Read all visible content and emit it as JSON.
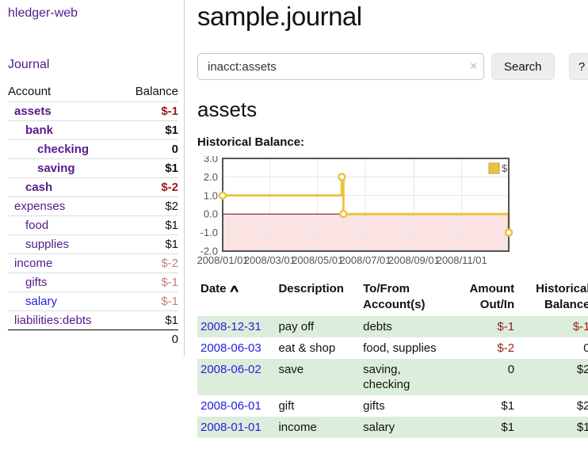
{
  "colors": {
    "accent_gold": "#edc240",
    "gold_border": "#c9a42e",
    "negative_strong": "#9b1b1b",
    "negative_muted": "#c1807d",
    "link_purple": "#551a8b",
    "link_blue": "#2222dd",
    "row_green": "#dceedb",
    "negative_region_fill": "#fbe3e3",
    "zero_line": "#8b0000",
    "chart_border": "#545454",
    "gridline": "#e6e6e6"
  },
  "sidebar": {
    "brand": "hledger-web",
    "journal_link": "Journal",
    "accounts_table": {
      "headers": {
        "account": "Account",
        "balance": "Balance"
      },
      "rows": [
        {
          "account": "assets",
          "balance": "$-1",
          "depth": 1,
          "emph": true,
          "balance_class": "neg-strong"
        },
        {
          "account": "bank",
          "balance": "$1",
          "depth": 2,
          "emph": true,
          "balance_class": ""
        },
        {
          "account": "checking",
          "balance": "0",
          "depth": 3,
          "emph": true,
          "balance_class": ""
        },
        {
          "account": "saving",
          "balance": "$1",
          "depth": 3,
          "emph": true,
          "balance_class": ""
        },
        {
          "account": "cash",
          "balance": "$-2",
          "depth": 2,
          "emph": true,
          "balance_class": "neg-strong"
        },
        {
          "account": "expenses",
          "balance": "$2",
          "depth": 1,
          "emph": false,
          "balance_class": ""
        },
        {
          "account": "food",
          "balance": "$1",
          "depth": 2,
          "emph": false,
          "balance_class": ""
        },
        {
          "account": "supplies",
          "balance": "$1",
          "depth": 2,
          "emph": false,
          "balance_class": ""
        },
        {
          "account": "income",
          "balance": "$-2",
          "depth": 1,
          "emph": false,
          "balance_class": "neg-muted"
        },
        {
          "account": "gifts",
          "balance": "$-1",
          "depth": 2,
          "emph": false,
          "balance_class": "neg-muted"
        },
        {
          "account": "salary",
          "balance": "$-1",
          "depth": 2,
          "emph": false,
          "balance_class": "neg-muted",
          "link_color": "blue"
        },
        {
          "account": "liabilities:debts",
          "balance": "$1",
          "depth": 1,
          "emph": false,
          "balance_class": ""
        }
      ],
      "total": "0"
    }
  },
  "main": {
    "title": "sample.journal",
    "search": {
      "value": "inacct:assets",
      "clear_icon": "×",
      "search_button": "Search",
      "help_button": "?"
    },
    "account_heading": "assets",
    "chart_label": "Historical Balance:"
  },
  "chart_data": {
    "type": "line",
    "step": true,
    "title": "Historical Balance:",
    "series": [
      {
        "name": "$",
        "color": "#edc240",
        "points": [
          {
            "date": "2008-01-01",
            "value": 1
          },
          {
            "date": "2008-06-01",
            "value": 2
          },
          {
            "date": "2008-06-03",
            "value": 0
          },
          {
            "date": "2008-12-31",
            "value": -1
          }
        ]
      }
    ],
    "x_range": [
      "2008-01-01",
      "2008-12-31"
    ],
    "x_ticks": [
      {
        "label": "2008/01/01",
        "date": "2008-01-01"
      },
      {
        "label": "2008/03/01",
        "date": "2008-03-01"
      },
      {
        "label": "2008/05/01",
        "date": "2008-05-01"
      },
      {
        "label": "2008/07/01",
        "date": "2008-07-01"
      },
      {
        "label": "2008/09/01",
        "date": "2008-09-01"
      },
      {
        "label": "2008/11/01",
        "date": "2008-11-01"
      }
    ],
    "ylim": [
      -2,
      3
    ],
    "y_ticks": [
      "3.0",
      "2.0",
      "1.0",
      "0.0",
      "-1.0",
      "-2.0"
    ],
    "grid": true,
    "legend": {
      "label": "$",
      "position": "top-right"
    },
    "negative_region": {
      "below": 0
    }
  },
  "register": {
    "columns": [
      {
        "label": "Date",
        "sort": "asc",
        "align": "left"
      },
      {
        "label": "Description",
        "align": "left"
      },
      {
        "label": "To/From Account(s)",
        "align": "left"
      },
      {
        "label": "Amount Out/In",
        "align": "right"
      },
      {
        "label": "Historical Balance",
        "align": "right"
      }
    ],
    "sort_caret": "∧",
    "rows": [
      {
        "date": "2008-12-31",
        "description": "pay off",
        "accounts": "debts",
        "amount": "$-1",
        "amount_neg": true,
        "balance": "$-1",
        "balance_neg": true,
        "shaded": true
      },
      {
        "date": "2008-06-03",
        "description": "eat & shop",
        "accounts": "food, supplies",
        "amount": "$-2",
        "amount_neg": true,
        "balance": "0",
        "balance_neg": false,
        "shaded": false
      },
      {
        "date": "2008-06-02",
        "description": "save",
        "accounts": "saving, checking",
        "amount": "0",
        "amount_neg": false,
        "balance": "$2",
        "balance_neg": false,
        "shaded": true
      },
      {
        "date": "2008-06-01",
        "description": "gift",
        "accounts": "gifts",
        "amount": "$1",
        "amount_neg": false,
        "balance": "$2",
        "balance_neg": false,
        "shaded": false
      },
      {
        "date": "2008-01-01",
        "description": "income",
        "accounts": "salary",
        "amount": "$1",
        "amount_neg": false,
        "balance": "$1",
        "balance_neg": false,
        "shaded": true
      }
    ]
  }
}
